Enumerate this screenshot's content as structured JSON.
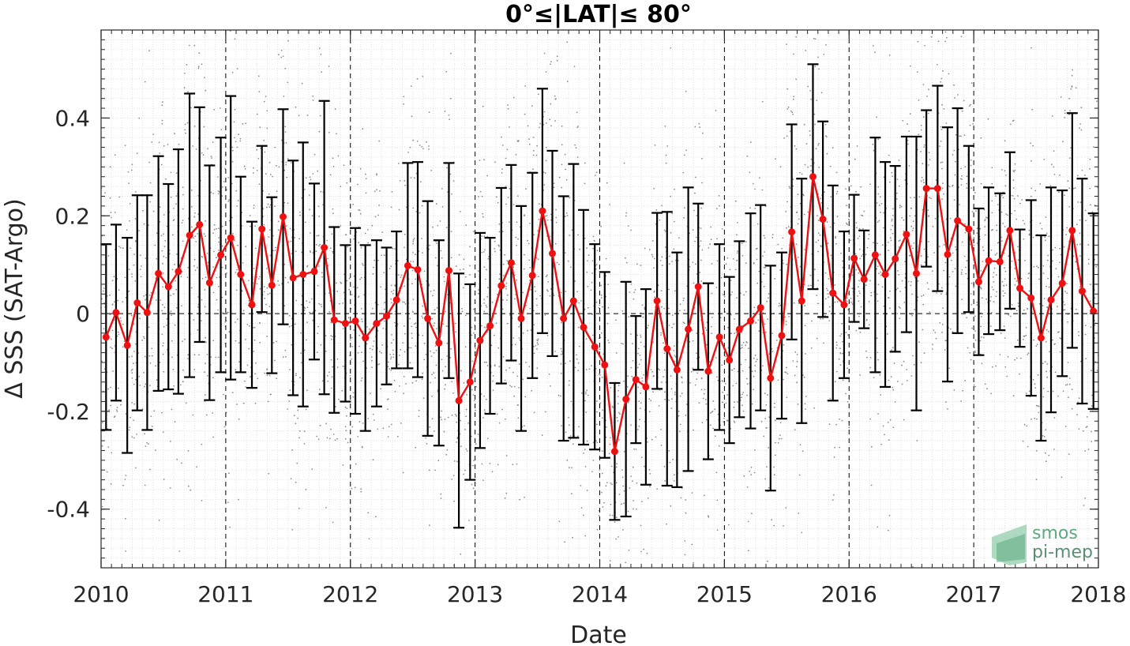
{
  "chart_data": {
    "type": "line",
    "title": "0°≤|LAT|≤ 80°",
    "xlabel": "Date",
    "ylabel": "Δ SSS (SAT-Argo)",
    "xlim": [
      2010.0,
      2018.0
    ],
    "ylim": [
      -0.52,
      0.58
    ],
    "x_ticks": [
      2010,
      2011,
      2012,
      2013,
      2014,
      2015,
      2016,
      2017,
      2018
    ],
    "y_ticks": [
      -0.4,
      -0.2,
      0,
      0.2,
      0.4
    ],
    "y_tick_labels": [
      "-0.4",
      "-0.2",
      "0",
      "0.2",
      "0.4"
    ],
    "grid": true,
    "reference_line": 0,
    "colors": {
      "mean": "#ee1111",
      "errorbar": "#000000",
      "scatter": "#8c8c8c",
      "logo": "#5fa97f"
    },
    "series": [
      {
        "x": [
          2010.04,
          2010.12,
          2010.21,
          2010.29,
          2010.37,
          2010.46,
          2010.54,
          2010.62,
          2010.71,
          2010.79,
          2010.87,
          2010.96,
          2011.04,
          2011.12,
          2011.21,
          2011.29,
          2011.37,
          2011.46,
          2011.54,
          2011.62,
          2011.71,
          2011.79,
          2011.87,
          2011.96,
          2012.04,
          2012.12,
          2012.21,
          2012.29,
          2012.37,
          2012.46,
          2012.54,
          2012.62,
          2012.71,
          2012.79,
          2012.87,
          2012.96,
          2013.04,
          2013.12,
          2013.21,
          2013.29,
          2013.37,
          2013.46,
          2013.54,
          2013.62,
          2013.71,
          2013.79,
          2013.87,
          2013.96,
          2014.04,
          2014.12,
          2014.21,
          2014.29,
          2014.37,
          2014.46,
          2014.54,
          2014.62,
          2014.71,
          2014.79,
          2014.87,
          2014.96,
          2015.04,
          2015.12,
          2015.21,
          2015.29,
          2015.37,
          2015.46,
          2015.54,
          2015.62,
          2015.71,
          2015.79,
          2015.87,
          2015.96,
          2016.04,
          2016.12,
          2016.21,
          2016.29,
          2016.37,
          2016.46,
          2016.54,
          2016.62,
          2016.71,
          2016.79,
          2016.87,
          2016.96,
          2017.04,
          2017.12,
          2017.21,
          2017.29,
          2017.37,
          2017.46,
          2017.54,
          2017.62,
          2017.71,
          2017.79,
          2017.87,
          2017.96
        ],
        "y": [
          -0.048,
          0.002,
          -0.065,
          0.022,
          0.002,
          0.082,
          0.055,
          0.086,
          0.16,
          0.182,
          0.063,
          0.12,
          0.155,
          0.08,
          0.018,
          0.173,
          0.058,
          0.198,
          0.073,
          0.08,
          0.086,
          0.135,
          -0.013,
          -0.02,
          -0.015,
          -0.05,
          -0.02,
          -0.005,
          0.028,
          0.098,
          0.09,
          -0.01,
          -0.06,
          0.088,
          -0.178,
          -0.14,
          -0.055,
          -0.025,
          0.057,
          0.104,
          -0.01,
          0.078,
          0.21,
          0.123,
          -0.01,
          0.026,
          -0.028,
          -0.068,
          -0.105,
          -0.282,
          -0.175,
          -0.135,
          -0.15,
          0.026,
          -0.072,
          -0.115,
          -0.032,
          0.055,
          -0.118,
          -0.048,
          -0.095,
          -0.032,
          -0.015,
          0.012,
          -0.132,
          -0.045,
          0.167,
          0.026,
          0.28,
          0.193,
          0.042,
          0.018,
          0.113,
          0.07,
          0.12,
          0.08,
          0.112,
          0.162,
          0.082,
          0.256,
          0.256,
          0.121,
          0.19,
          0.173,
          0.065,
          0.108,
          0.106,
          0.17,
          0.052,
          0.032,
          -0.05,
          0.028,
          0.062,
          0.17,
          0.046,
          0.005
        ],
        "err": [
          0.19,
          0.18,
          0.22,
          0.22,
          0.24,
          0.24,
          0.21,
          0.25,
          0.29,
          0.24,
          0.24,
          0.24,
          0.29,
          0.2,
          0.17,
          0.17,
          0.18,
          0.22,
          0.24,
          0.27,
          0.18,
          0.3,
          0.19,
          0.16,
          0.19,
          0.19,
          0.17,
          0.14,
          0.14,
          0.21,
          0.22,
          0.24,
          0.21,
          0.22,
          0.26,
          0.2,
          0.22,
          0.18,
          0.2,
          0.2,
          0.23,
          0.21,
          0.25,
          0.21,
          0.25,
          0.28,
          0.24,
          0.21,
          0.19,
          0.14,
          0.24,
          0.13,
          0.2,
          0.18,
          0.28,
          0.24,
          0.29,
          0.17,
          0.18,
          0.19,
          0.17,
          0.18,
          0.22,
          0.21,
          0.23,
          0.17,
          0.22,
          0.25,
          0.23,
          0.2,
          0.22,
          0.15,
          0.13,
          0.1,
          0.24,
          0.23,
          0.19,
          0.2,
          0.28,
          0.16,
          0.21,
          0.26,
          0.23,
          0.17,
          0.15,
          0.15,
          0.14,
          0.16,
          0.12,
          0.2,
          0.21,
          0.23,
          0.19,
          0.24,
          0.23,
          0.2
        ]
      }
    ]
  },
  "logo": {
    "line1": "smos",
    "line2": "pi-mep"
  }
}
